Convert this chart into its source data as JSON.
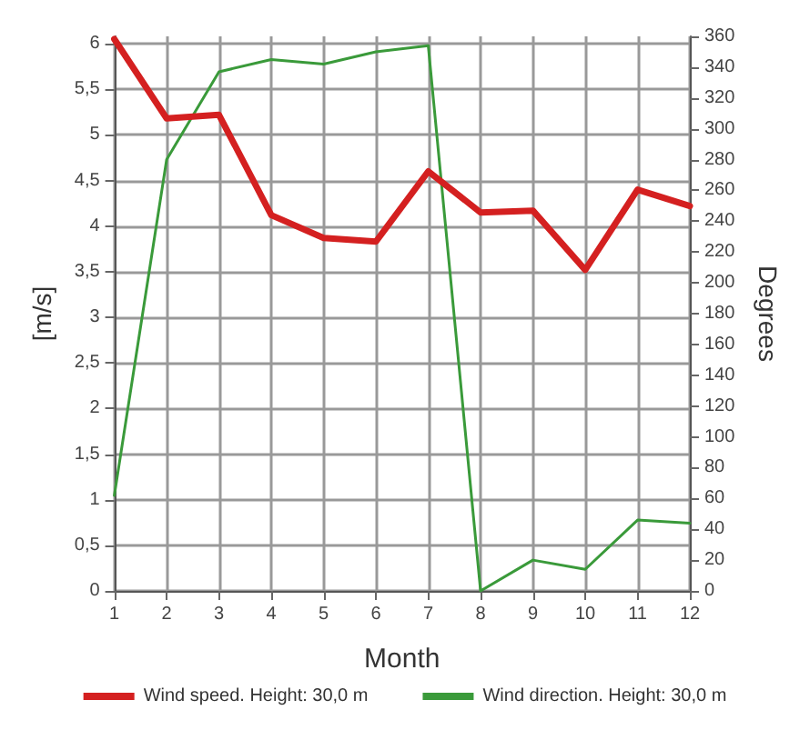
{
  "chart_data": {
    "type": "line",
    "xlabel": "Month",
    "ylabel": "[m/s]",
    "y2label": "Degrees",
    "x": [
      1,
      2,
      3,
      4,
      5,
      6,
      7,
      8,
      9,
      10,
      11,
      12
    ],
    "xlim": [
      1,
      12
    ],
    "xticks": [
      1,
      2,
      3,
      4,
      5,
      6,
      7,
      8,
      9,
      10,
      11,
      12
    ],
    "ylim": [
      0,
      6.08
    ],
    "yticks": [
      0,
      {
        "value": 0.5,
        "label": "0,5"
      },
      1,
      {
        "value": 1.5,
        "label": "1,5"
      },
      2,
      {
        "value": 2.5,
        "label": "2,5"
      },
      3,
      {
        "value": 3.5,
        "label": "3,5"
      },
      4,
      {
        "value": 4.5,
        "label": "4,5"
      },
      5,
      {
        "value": 5.5,
        "label": "5,5"
      },
      6
    ],
    "y2lim": [
      0,
      360
    ],
    "y2ticks": [
      0,
      20,
      40,
      60,
      80,
      100,
      120,
      140,
      160,
      180,
      200,
      220,
      240,
      260,
      280,
      300,
      320,
      340,
      360
    ],
    "grid": true,
    "legend": "bottom",
    "marker": "none",
    "line_style": "solid",
    "series": [
      {
        "name": "Wind speed. Height: 30,0 m",
        "color": "#d42020",
        "values": [
          6.05,
          5.18,
          5.22,
          4.12,
          3.87,
          3.83,
          4.6,
          4.15,
          4.17,
          3.52,
          4.4,
          4.22
        ]
      },
      {
        "name": "Wind direction. Height: 30,0 m",
        "color": "#3a9a3a",
        "axis": "y2",
        "values": [
          62,
          280,
          337,
          345,
          342,
          350,
          354,
          0,
          20,
          14,
          46,
          44
        ]
      }
    ]
  }
}
